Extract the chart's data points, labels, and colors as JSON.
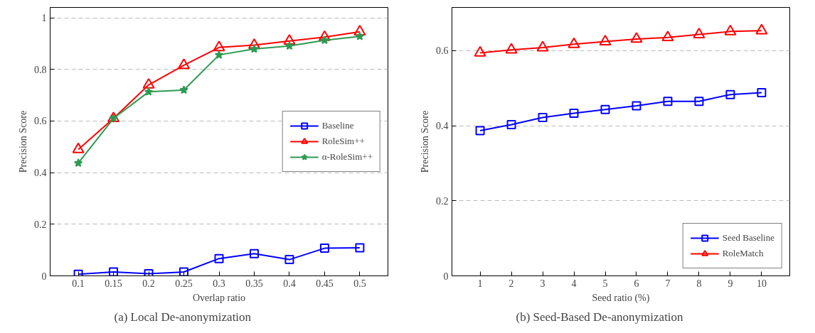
{
  "chart_data": [
    {
      "type": "line",
      "xlabel": "Overlap ratio",
      "ylabel": "Precision Score",
      "x": [
        0.1,
        0.15,
        0.2,
        0.25,
        0.3,
        0.35,
        0.4,
        0.45,
        0.5
      ],
      "xlim": [
        0.06,
        0.54
      ],
      "xticks": [
        0.1,
        0.15,
        0.2,
        0.25,
        0.3,
        0.35,
        0.4,
        0.45,
        0.5
      ],
      "ylim": [
        0,
        1.04
      ],
      "yticks": [
        0,
        0.2,
        0.4,
        0.6,
        0.8,
        1
      ],
      "grid": "y",
      "legend": "right",
      "line_style": "solid",
      "series": [
        {
          "name": "Baseline",
          "color": "#0000ff",
          "marker": "square",
          "values": [
            0.006,
            0.015,
            0.008,
            0.015,
            0.067,
            0.086,
            0.063,
            0.107,
            0.109
          ]
        },
        {
          "name": "RoleSim++",
          "color": "#ff0000",
          "marker": "triangle",
          "values": [
            0.49,
            0.61,
            0.74,
            0.816,
            0.885,
            0.894,
            0.91,
            0.925,
            0.946
          ]
        },
        {
          "name": "α-RoleSim++",
          "color": "#2e9a52",
          "marker": "star",
          "values": [
            0.437,
            0.61,
            0.713,
            0.72,
            0.856,
            0.879,
            0.891,
            0.913,
            0.928
          ]
        }
      ],
      "annotations": [
        "(a) Local De-anonymization"
      ]
    },
    {
      "type": "line",
      "xlabel": "Seed ratio (%)",
      "ylabel": "Precision Score",
      "x": [
        1,
        2,
        3,
        4,
        5,
        6,
        7,
        8,
        9,
        10
      ],
      "xlim": [
        0.1,
        10.9
      ],
      "xticks": [
        1,
        2,
        3,
        4,
        5,
        6,
        7,
        8,
        9,
        10
      ],
      "ylim": [
        0,
        0.715
      ],
      "yticks": [
        0,
        0.2,
        0.4,
        0.6
      ],
      "grid": "y",
      "legend": "bottom right",
      "line_style": "solid",
      "series": [
        {
          "name": "Seed Baseline",
          "color": "#0000ff",
          "marker": "square",
          "values": [
            0.387,
            0.403,
            0.422,
            0.433,
            0.443,
            0.453,
            0.465,
            0.465,
            0.483,
            0.488
          ]
        },
        {
          "name": "RoleMatch",
          "color": "#ff0000",
          "marker": "triangle",
          "values": [
            0.594,
            0.602,
            0.608,
            0.617,
            0.624,
            0.631,
            0.635,
            0.643,
            0.651,
            0.653
          ]
        }
      ],
      "annotations": [
        "(b) Seed-Based De-anonymization"
      ]
    }
  ]
}
